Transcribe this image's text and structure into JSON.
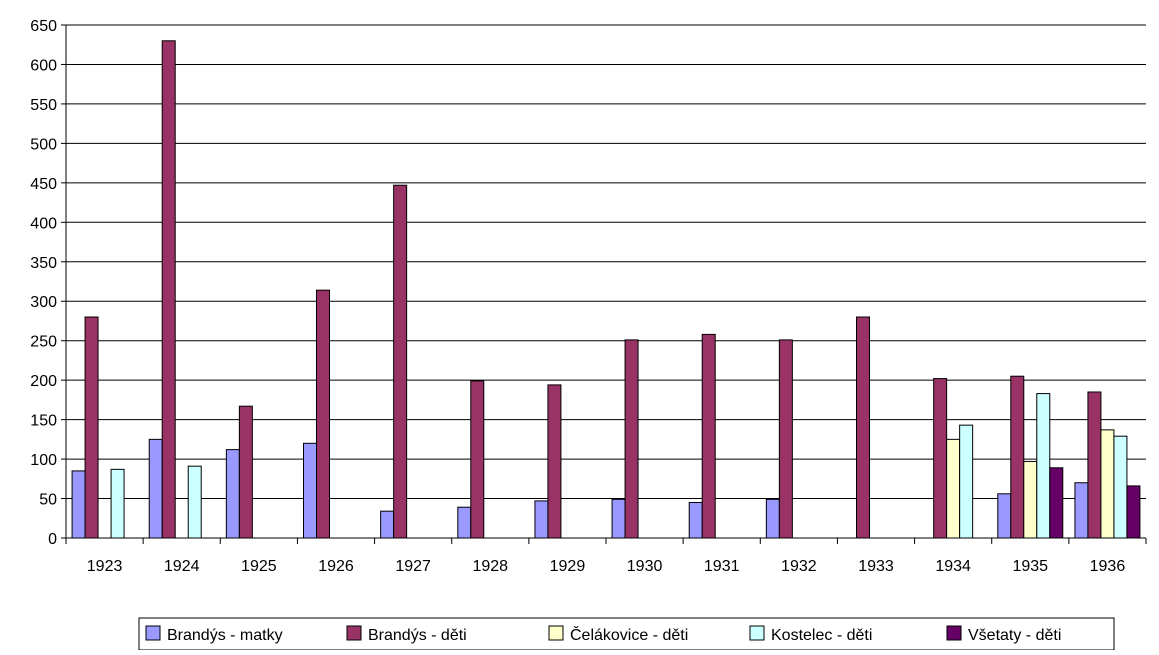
{
  "chart_data": {
    "type": "bar",
    "title": "",
    "xlabel": "",
    "ylabel": "",
    "ylim": [
      0,
      650
    ],
    "yticks": [
      0,
      50,
      100,
      150,
      200,
      250,
      300,
      350,
      400,
      450,
      500,
      550,
      600,
      650
    ],
    "grid": true,
    "legend_position": "bottom",
    "categories": [
      "1923",
      "1924",
      "1925",
      "1926",
      "1927",
      "1928",
      "1929",
      "1930",
      "1931",
      "1932",
      "1933",
      "1934",
      "1935",
      "1936"
    ],
    "series": [
      {
        "name": "Brandýs - matky",
        "color": "#9999FF",
        "values": [
          85,
          125,
          112,
          120,
          34,
          39,
          47,
          49,
          45,
          49,
          0,
          0,
          56,
          70
        ]
      },
      {
        "name": "Brandýs - děti",
        "color": "#993366",
        "values": [
          280,
          630,
          167,
          314,
          447,
          199,
          194,
          251,
          258,
          251,
          280,
          202,
          205,
          185
        ]
      },
      {
        "name": "Čelákovice - děti",
        "color": "#FFFFCC",
        "values": [
          0,
          0,
          0,
          0,
          0,
          0,
          0,
          0,
          0,
          0,
          0,
          125,
          97,
          137
        ]
      },
      {
        "name": "Kostelec - děti",
        "color": "#CCFFFF",
        "values": [
          87,
          91,
          0,
          0,
          0,
          0,
          0,
          0,
          0,
          0,
          0,
          143,
          183,
          129
        ]
      },
      {
        "name": "Všetaty - děti",
        "color": "#660066",
        "values": [
          0,
          0,
          0,
          0,
          0,
          0,
          0,
          0,
          0,
          0,
          0,
          0,
          89,
          66
        ]
      }
    ]
  }
}
